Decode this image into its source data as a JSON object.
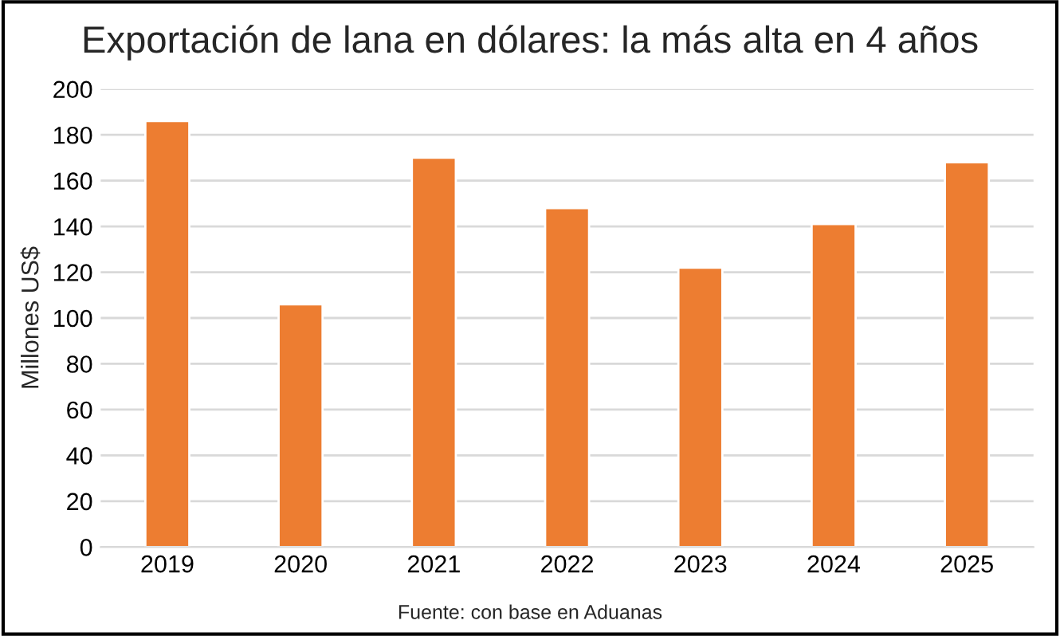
{
  "chart_data": {
    "type": "bar",
    "title": "Exportación de lana en dólares: la más alta en 4 años",
    "ylabel": "Millones US$",
    "categories": [
      "2019",
      "2020",
      "2021",
      "2022",
      "2023",
      "2024",
      "2025"
    ],
    "values": [
      186,
      106,
      170,
      148,
      122,
      141,
      168
    ],
    "color": "#ed7d31",
    "ylim": [
      0,
      200
    ],
    "yticks": [
      0,
      20,
      40,
      60,
      80,
      100,
      120,
      140,
      160,
      180,
      200
    ],
    "grid": "y",
    "annotations": [
      "Fuente: con base en Aduanas"
    ]
  }
}
